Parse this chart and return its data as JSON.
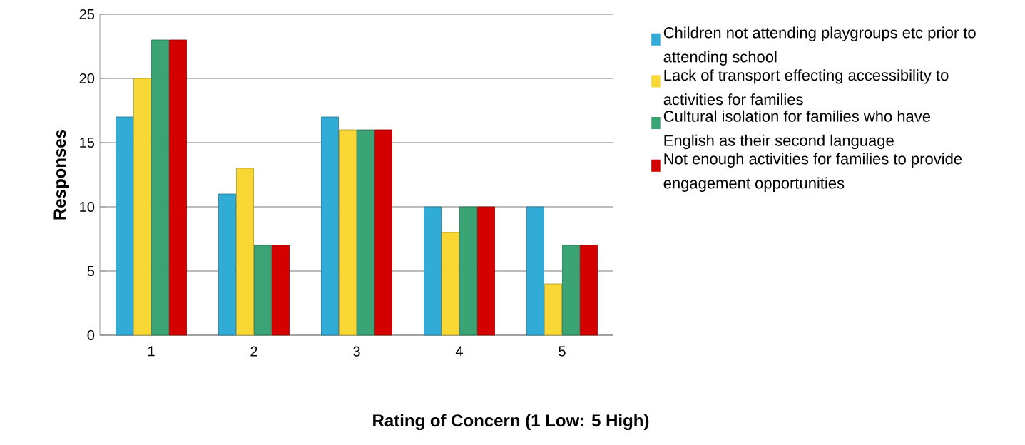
{
  "chart_data": {
    "type": "bar",
    "xlabel": "Rating of Concern (1 Low: 5 High)",
    "ylabel": "Responses",
    "categories": [
      "1",
      "2",
      "3",
      "4",
      "5"
    ],
    "series": [
      {
        "name": "Children not attending playgroups etc prior to attending school",
        "color": "#31acd6",
        "values": [
          17,
          11,
          17,
          10,
          10
        ]
      },
      {
        "name": "Lack of transport effecting accessibility to activities for families",
        "color": "#f9d835",
        "values": [
          20,
          13,
          16,
          8,
          4
        ]
      },
      {
        "name": "Cultural isolation for families who have English as their second language",
        "color": "#3aa474",
        "values": [
          23,
          7,
          16,
          10,
          7
        ]
      },
      {
        "name": "Not enough activities for families to provide engagement opportunities",
        "color": "#d40000",
        "values": [
          23,
          7,
          16,
          10,
          7
        ]
      }
    ],
    "ylim": [
      0,
      25
    ],
    "yticks": [
      0,
      5,
      10,
      15,
      20,
      25
    ],
    "grid": "y",
    "legend": "right"
  }
}
